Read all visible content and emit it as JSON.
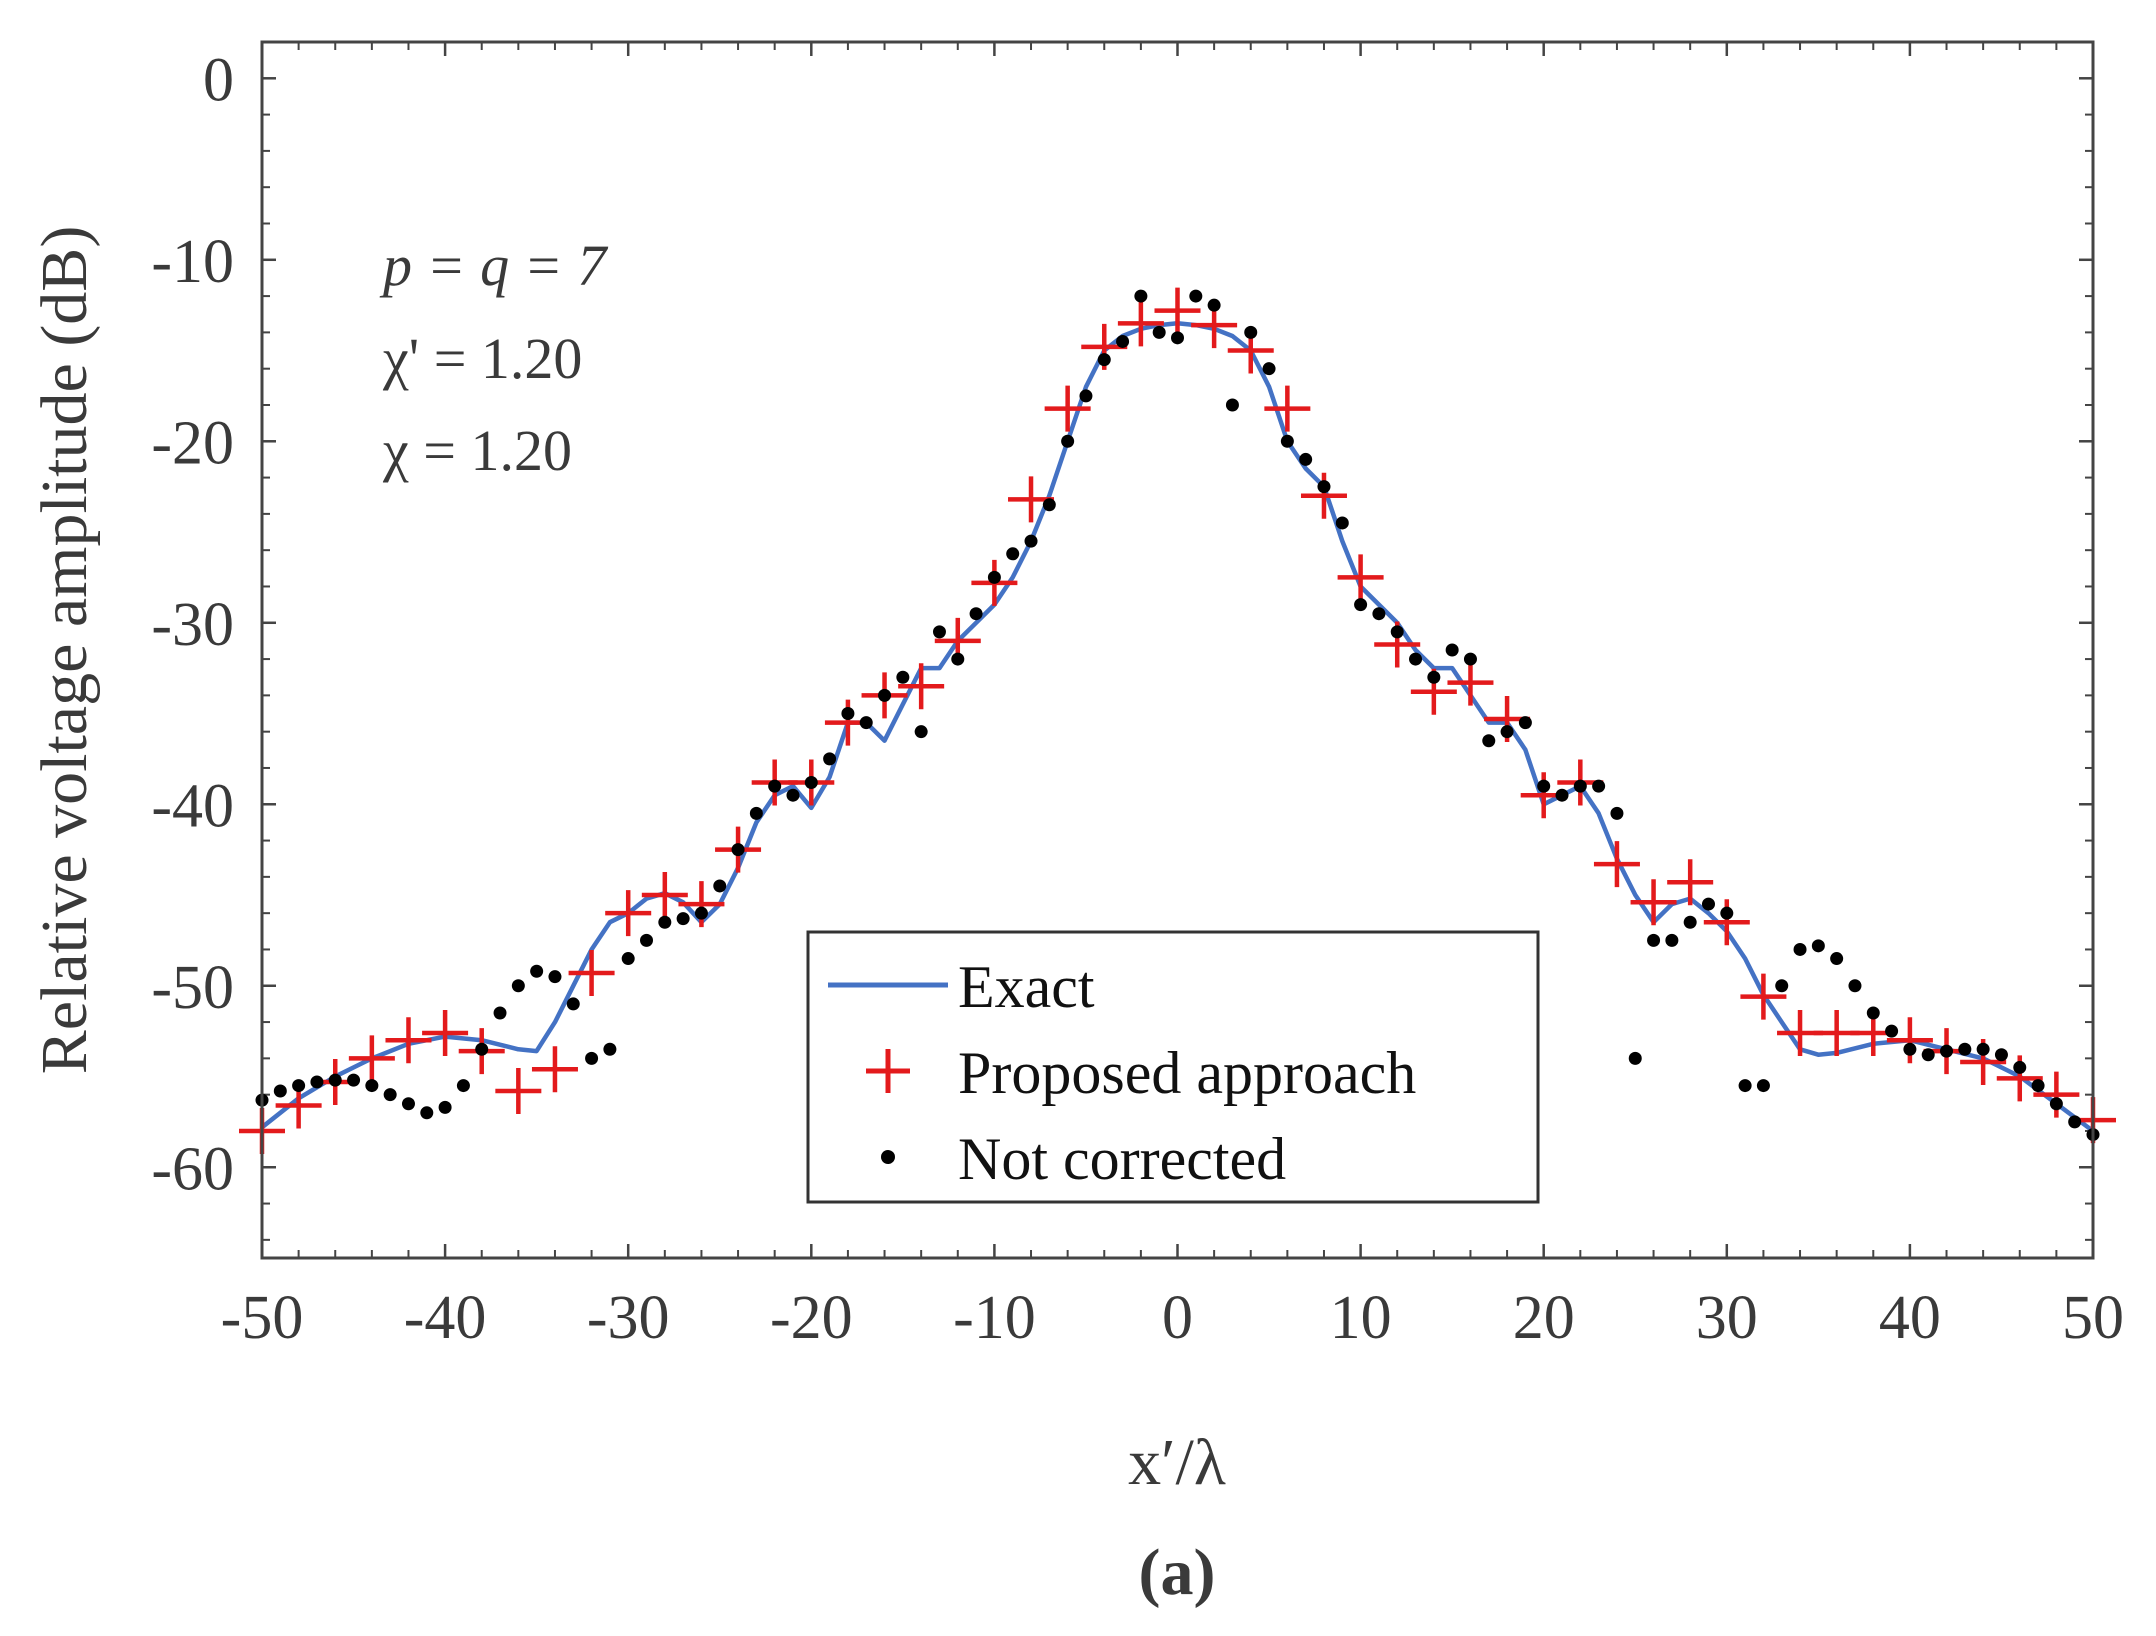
{
  "chart_data": {
    "type": "line",
    "title": "",
    "xlabel": "x′/λ",
    "ylabel": "Relative voltage amplitude (dB)",
    "xlim": [
      -50,
      50
    ],
    "ylim": [
      -65,
      2
    ],
    "xticks": [
      -50,
      -40,
      -30,
      -20,
      -10,
      0,
      10,
      20,
      30,
      40,
      50
    ],
    "yticks": [
      0,
      -10,
      -20,
      -30,
      -40,
      -50,
      -60
    ],
    "grid": false,
    "legend_position": "bottom-center",
    "annotations": [
      "p = q = 7",
      "χ' = 1.20",
      "χ = 1.20"
    ],
    "panel_label": "(a)",
    "series": [
      {
        "name": "Exact",
        "style": "line",
        "color": "#4472c4",
        "x": [
          -50,
          -48,
          -46,
          -44,
          -42,
          -40,
          -38,
          -36,
          -35,
          -34,
          -33,
          -32,
          -31,
          -30,
          -29,
          -28,
          -27,
          -26,
          -25,
          -24,
          -23,
          -22,
          -21,
          -20,
          -19,
          -18,
          -17,
          -16,
          -15,
          -14,
          -13,
          -12,
          -11,
          -10,
          -9,
          -8,
          -7,
          -6,
          -5,
          -4,
          -3,
          -2,
          -1,
          0,
          1,
          2,
          3,
          4,
          5,
          6,
          7,
          8,
          9,
          10,
          11,
          12,
          13,
          14,
          15,
          16,
          17,
          18,
          19,
          20,
          21,
          22,
          23,
          24,
          25,
          26,
          27,
          28,
          29,
          30,
          31,
          32,
          33,
          34,
          35,
          36,
          38,
          40,
          42,
          44,
          46,
          48,
          50
        ],
        "y": [
          -57.8,
          -56.2,
          -55.0,
          -54.0,
          -53.2,
          -52.8,
          -53.0,
          -53.5,
          -53.6,
          -52.0,
          -50.0,
          -48.0,
          -46.5,
          -46.0,
          -45.2,
          -44.9,
          -45.4,
          -46.5,
          -45.5,
          -43.5,
          -41.0,
          -39.5,
          -39.0,
          -40.2,
          -38.5,
          -35.5,
          -35.5,
          -36.5,
          -34.5,
          -32.5,
          -32.5,
          -31.0,
          -30.0,
          -29.0,
          -27.5,
          -25.5,
          -23.0,
          -20.0,
          -17.0,
          -15.0,
          -14.2,
          -13.8,
          -13.6,
          -13.5,
          -13.6,
          -13.8,
          -14.2,
          -15.0,
          -17.0,
          -20.0,
          -21.5,
          -22.5,
          -25.5,
          -28.0,
          -29.0,
          -30.0,
          -31.5,
          -32.5,
          -32.5,
          -34.0,
          -35.5,
          -35.5,
          -37.0,
          -40.0,
          -39.5,
          -39.0,
          -40.5,
          -43.0,
          -45.0,
          -46.5,
          -45.5,
          -45.2,
          -46.0,
          -47.0,
          -48.5,
          -50.5,
          -52.0,
          -53.5,
          -53.8,
          -53.7,
          -53.2,
          -53.0,
          -53.5,
          -54.0,
          -55.0,
          -56.5,
          -58.0
        ]
      },
      {
        "name": "Proposed approach",
        "style": "plus-marker",
        "color": "#e31a1c",
        "x": [
          -50,
          -48,
          -46,
          -44,
          -42,
          -40,
          -38,
          -36,
          -34,
          -32,
          -30,
          -28,
          -26,
          -24,
          -22,
          -20,
          -18,
          -16,
          -14,
          -12,
          -10,
          -8,
          -6,
          -4,
          -2,
          0,
          2,
          4,
          6,
          8,
          10,
          12,
          14,
          16,
          18,
          20,
          22,
          24,
          26,
          28,
          30,
          32,
          34,
          36,
          38,
          40,
          42,
          44,
          46,
          48,
          50
        ],
        "y": [
          -58.0,
          -56.6,
          -55.3,
          -54.0,
          -53.0,
          -52.6,
          -53.6,
          -55.8,
          -54.6,
          -49.3,
          -46.0,
          -45.0,
          -45.5,
          -42.5,
          -38.8,
          -38.8,
          -35.5,
          -34.0,
          -33.5,
          -31.0,
          -27.8,
          -23.2,
          -18.2,
          -14.8,
          -13.5,
          -12.8,
          -13.6,
          -15.0,
          -18.2,
          -23.0,
          -27.5,
          -31.2,
          -33.8,
          -33.3,
          -35.3,
          -39.5,
          -38.8,
          -43.3,
          -45.4,
          -44.3,
          -46.5,
          -50.6,
          -52.6,
          -52.6,
          -52.6,
          -53.0,
          -53.6,
          -54.2,
          -55.1,
          -56.0,
          -57.4
        ]
      },
      {
        "name": "Not corrected",
        "style": "dot-marker",
        "color": "#000000",
        "x": [
          -50,
          -49,
          -48,
          -47,
          -46,
          -45,
          -44,
          -43,
          -42,
          -41,
          -40,
          -39,
          -38,
          -37,
          -36,
          -35,
          -34,
          -33,
          -32,
          -31,
          -30,
          -29,
          -28,
          -27,
          -26,
          -25,
          -24,
          -23,
          -22,
          -21,
          -20,
          -19,
          -18,
          -17,
          -16,
          -15,
          -14,
          -13,
          -12,
          -11,
          -10,
          -9,
          -8,
          -7,
          -6,
          -5,
          -4,
          -3,
          -2,
          -1,
          0,
          1,
          2,
          3,
          4,
          5,
          6,
          7,
          8,
          9,
          10,
          11,
          12,
          13,
          14,
          15,
          16,
          17,
          18,
          19,
          20,
          21,
          22,
          23,
          24,
          25,
          26,
          27,
          28,
          29,
          30,
          31,
          32,
          33,
          34,
          35,
          36,
          37,
          38,
          39,
          40,
          41,
          42,
          43,
          44,
          45,
          46,
          47,
          48,
          49,
          50
        ],
        "y": [
          -56.3,
          -55.8,
          -55.5,
          -55.3,
          -55.2,
          -55.2,
          -55.5,
          -56.0,
          -56.5,
          -57.0,
          -56.7,
          -55.5,
          -53.5,
          -51.5,
          -50.0,
          -49.2,
          -49.5,
          -51.0,
          -54.0,
          -53.5,
          -48.5,
          -47.5,
          -46.5,
          -46.3,
          -46.0,
          -44.5,
          -42.5,
          -40.5,
          -39.0,
          -39.5,
          -38.8,
          -37.5,
          -35.0,
          -35.5,
          -34.0,
          -33.0,
          -36.0,
          -30.5,
          -32.0,
          -29.5,
          -27.5,
          -26.2,
          -25.5,
          -23.5,
          -20.0,
          -17.5,
          -15.5,
          -14.5,
          -12.0,
          -14.0,
          -14.3,
          -12.0,
          -12.5,
          -18.0,
          -14.0,
          -16.0,
          -20.0,
          -21.0,
          -22.5,
          -24.5,
          -29.0,
          -29.5,
          -30.5,
          -32.0,
          -33.0,
          -31.5,
          -32.0,
          -36.5,
          -36.0,
          -35.5,
          -39.0,
          -39.5,
          -39.0,
          -39.0,
          -40.5,
          -54.0,
          -47.5,
          -47.5,
          -46.5,
          -45.5,
          -46.0,
          -55.5,
          -55.5,
          -50.0,
          -48.0,
          -47.8,
          -48.5,
          -50.0,
          -51.5,
          -52.5,
          -53.5,
          -53.8,
          -53.6,
          -53.5,
          -53.5,
          -53.8,
          -54.5,
          -55.5,
          -56.5,
          -57.5,
          -58.2
        ]
      }
    ]
  }
}
